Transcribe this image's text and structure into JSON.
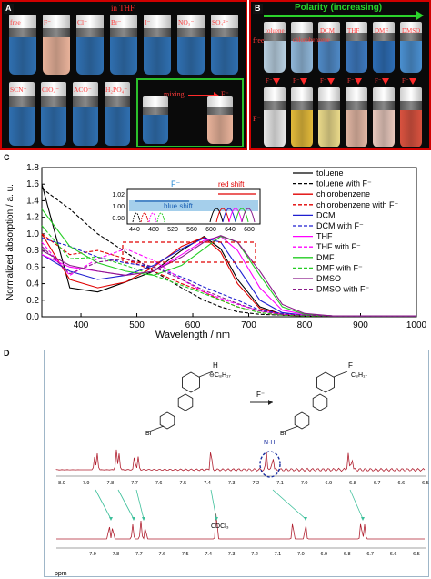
{
  "panelA": {
    "letter": "A",
    "title": "in THF",
    "row1": [
      {
        "label": "free",
        "color": "#2f6fb0"
      },
      {
        "label": "F⁻",
        "color": "#e8b29a"
      },
      {
        "label": "Cl⁻",
        "color": "#2f6fb0"
      },
      {
        "label": "Br⁻",
        "color": "#2f6fb0"
      },
      {
        "label": "I⁻",
        "color": "#2f6fb0"
      },
      {
        "label": "NO₃⁻",
        "color": "#2f6fb0"
      },
      {
        "label": "SO₄²⁻",
        "color": "#2f6fb0"
      }
    ],
    "row2": [
      {
        "label": "SCN⁻",
        "color": "#2f6fb0"
      },
      {
        "label": "ClO₄⁻",
        "color": "#2f6fb0"
      },
      {
        "label": "ACO⁻",
        "color": "#2f6fb0"
      },
      {
        "label": "H₂PO₄⁻",
        "color": "#2f6fb0"
      }
    ],
    "mixing_label": "mixing",
    "mixing_target": "F⁻"
  },
  "panelB": {
    "letter": "B",
    "title": "Polarity (increasing)",
    "free_label": "free",
    "f_label": "F⁻",
    "solvents": [
      "toluene",
      "chlorobenzene",
      "DCM",
      "THF",
      "DMF",
      "DMSO"
    ],
    "top_colors": [
      "#b8cfe0",
      "#8fb6d8",
      "#4f89c6",
      "#3d79bf",
      "#2d6db5",
      "#4a8fd0"
    ],
    "bottom_colors": [
      "#e8e8e8",
      "#e2b93a",
      "#e9d98a",
      "#e3b7a4",
      "#e8c8bd",
      "#d9523f"
    ]
  },
  "panelC": {
    "letter": "C",
    "ylabel": "Normalized absorption / a. u.",
    "xlabel": "Wavelength / nm",
    "legend": [
      "toluene",
      "toluene with F⁻",
      "chlorobenzene",
      "chlorobenzene with F⁻",
      "DCM",
      "DCM with F⁻",
      "THF",
      "THF with F⁻",
      "DMF",
      "DMF with F⁻",
      "DMSO",
      "DMSO with F⁻"
    ],
    "inset": {
      "f_label": "F⁻",
      "blue_label": "blue shift",
      "red_label": "red shift",
      "xticks": [
        "440",
        "480",
        "520",
        "560",
        "600",
        "640",
        "680"
      ],
      "yticks": [
        "1.02",
        "1.00",
        "0.98"
      ]
    }
  },
  "panelD": {
    "letter": "D",
    "reagent": "F⁻",
    "nh_label": "N-H",
    "cdcl3_label": "CDCl₃",
    "ppm_label": "ppm",
    "xticks": [
      "8.0",
      "7.9",
      "7.8",
      "7.7",
      "7.6",
      "7.5",
      "7.4",
      "7.3",
      "7.2",
      "7.1",
      "7.0",
      "6.9",
      "6.8",
      "6.7",
      "6.6",
      "6.5"
    ],
    "xticks2": [
      "7.9",
      "7.8",
      "7.7",
      "7.6",
      "7.5",
      "7.4",
      "7.3",
      "7.2",
      "7.1",
      "7.0",
      "6.9",
      "6.8",
      "6.7",
      "6.6",
      "6.5"
    ],
    "mol_left": {
      "n_label": "H",
      "chain": "C₈H₁₇",
      "br": "Br",
      "charge": "⊖"
    },
    "mol_right": {
      "n_label": "F",
      "chain": "C₈H₁₇",
      "br": "Br"
    }
  },
  "chart_data": {
    "type": "line",
    "xlabel": "Wavelength / nm",
    "ylabel": "Normalized absorption / a. u.",
    "xlim": [
      330,
      1000
    ],
    "ylim": [
      0,
      1.8
    ],
    "xticks": [
      400,
      500,
      600,
      700,
      800,
      900,
      1000
    ],
    "yticks": [
      0.0,
      0.2,
      0.4,
      0.6,
      0.8,
      1.0,
      1.2,
      1.4,
      1.6,
      1.8
    ],
    "x": [
      330,
      380,
      430,
      480,
      530,
      580,
      620,
      650,
      680,
      720,
      760,
      800,
      850,
      900,
      1000
    ],
    "series": [
      {
        "name": "toluene",
        "color": "#000000",
        "dash": false,
        "values": [
          1.6,
          0.35,
          0.3,
          0.42,
          0.55,
          0.8,
          0.97,
          0.82,
          0.45,
          0.12,
          0.03,
          0.02,
          0.01,
          0.01,
          0.01
        ]
      },
      {
        "name": "toluene with F⁻",
        "color": "#000000",
        "dash": true,
        "values": [
          1.55,
          1.3,
          1.0,
          0.78,
          0.55,
          0.35,
          0.2,
          0.12,
          0.06,
          0.03,
          0.02,
          0.01,
          0.01,
          0.01,
          0.01
        ]
      },
      {
        "name": "chlorobenzene",
        "color": "#e00000",
        "dash": false,
        "values": [
          1.0,
          0.45,
          0.35,
          0.42,
          0.6,
          0.85,
          0.96,
          0.78,
          0.4,
          0.1,
          0.03,
          0.02,
          0.01,
          0.01,
          0.01
        ]
      },
      {
        "name": "chlorobenzene with F⁻",
        "color": "#e00000",
        "dash": true,
        "values": [
          1.0,
          0.75,
          0.8,
          0.7,
          0.55,
          0.4,
          0.3,
          0.2,
          0.12,
          0.05,
          0.02,
          0.01,
          0.01,
          0.01,
          0.01
        ]
      },
      {
        "name": "DCM",
        "color": "#1f1fd0",
        "dash": false,
        "values": [
          0.75,
          0.55,
          0.45,
          0.5,
          0.62,
          0.82,
          0.95,
          0.9,
          0.6,
          0.2,
          0.05,
          0.02,
          0.01,
          0.01,
          0.01
        ]
      },
      {
        "name": "DCM with F⁻",
        "color": "#1f1fd0",
        "dash": true,
        "values": [
          0.95,
          0.85,
          0.72,
          0.65,
          0.6,
          0.48,
          0.36,
          0.28,
          0.2,
          0.08,
          0.04,
          0.02,
          0.01,
          0.01,
          0.01
        ]
      },
      {
        "name": "THF",
        "color": "#ff00ff",
        "dash": false,
        "values": [
          0.75,
          0.6,
          0.55,
          0.5,
          0.55,
          0.75,
          0.92,
          0.97,
          0.8,
          0.35,
          0.08,
          0.03,
          0.01,
          0.01,
          0.01
        ]
      },
      {
        "name": "THF with F⁻",
        "color": "#ff00ff",
        "dash": true,
        "values": [
          0.9,
          0.5,
          0.7,
          0.82,
          0.68,
          0.45,
          0.3,
          0.22,
          0.15,
          0.07,
          0.03,
          0.02,
          0.01,
          0.01,
          0.01
        ]
      },
      {
        "name": "DMF",
        "color": "#22cc22",
        "dash": false,
        "values": [
          1.3,
          0.85,
          0.65,
          0.55,
          0.5,
          0.62,
          0.82,
          0.97,
          0.9,
          0.5,
          0.12,
          0.03,
          0.01,
          0.01,
          0.01
        ]
      },
      {
        "name": "DMF with F⁻",
        "color": "#22cc22",
        "dash": true,
        "values": [
          1.1,
          0.7,
          0.72,
          0.62,
          0.5,
          0.38,
          0.28,
          0.2,
          0.12,
          0.05,
          0.02,
          0.01,
          0.01,
          0.01,
          0.01
        ]
      },
      {
        "name": "DMSO",
        "color": "#8a1a8a",
        "dash": false,
        "values": [
          0.8,
          0.62,
          0.55,
          0.5,
          0.55,
          0.72,
          0.9,
          0.98,
          0.9,
          0.55,
          0.15,
          0.04,
          0.01,
          0.01,
          0.01
        ]
      },
      {
        "name": "DMSO with F⁻",
        "color": "#8a1a8a",
        "dash": true,
        "values": [
          0.85,
          0.52,
          0.66,
          0.7,
          0.6,
          0.45,
          0.32,
          0.24,
          0.16,
          0.07,
          0.03,
          0.02,
          0.01,
          0.01,
          0.01
        ]
      }
    ]
  }
}
